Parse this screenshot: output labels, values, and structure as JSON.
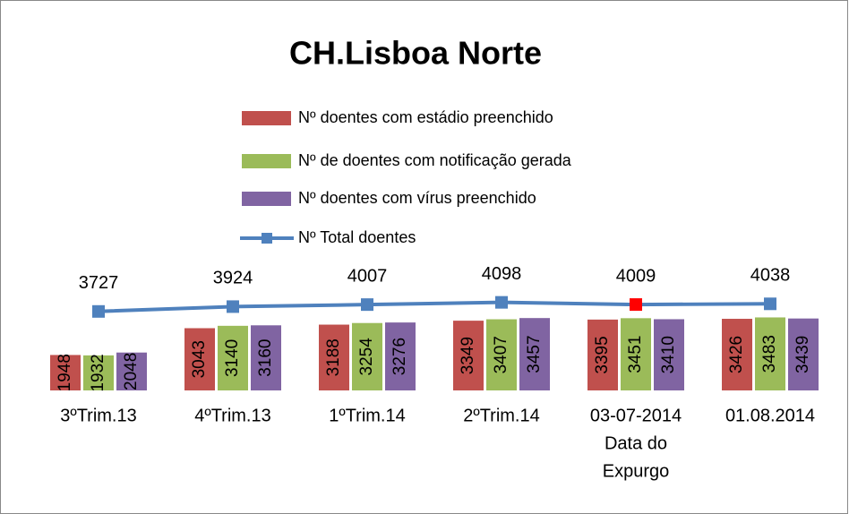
{
  "chart_data": {
    "type": "bar",
    "title": "CH.Lisboa Norte",
    "categories": [
      "3ºTrim.13",
      "4ºTrim.13",
      "1ºTrim.14",
      "2ºTrim.14",
      [
        "03-07-2014",
        "Data do",
        "Expurgo"
      ],
      "01.08.2014"
    ],
    "series": [
      {
        "name": "Nº  doentes com estádio preenchido",
        "color": "#c0504d",
        "values": [
          1948,
          3043,
          3188,
          3349,
          3395,
          3426
        ]
      },
      {
        "name": "Nº de doentes com notificação gerada",
        "color": "#9bbb59",
        "values": [
          1932,
          3140,
          3254,
          3407,
          3451,
          3483
        ]
      },
      {
        "name": "Nº  doentes com vírus preenchido",
        "color": "#8064a2",
        "values": [
          2048,
          3160,
          3276,
          3457,
          3410,
          3439
        ]
      },
      {
        "name": "Nº  Total doentes",
        "type": "line",
        "color": "#4f81bd",
        "marker_colors": [
          "#4f81bd",
          "#4f81bd",
          "#4f81bd",
          "#4f81bd",
          "#ff0000",
          "#4f81bd"
        ],
        "values": [
          3727,
          3924,
          4007,
          4098,
          4009,
          4038
        ]
      }
    ],
    "ylim": [
      500,
      5000
    ]
  }
}
